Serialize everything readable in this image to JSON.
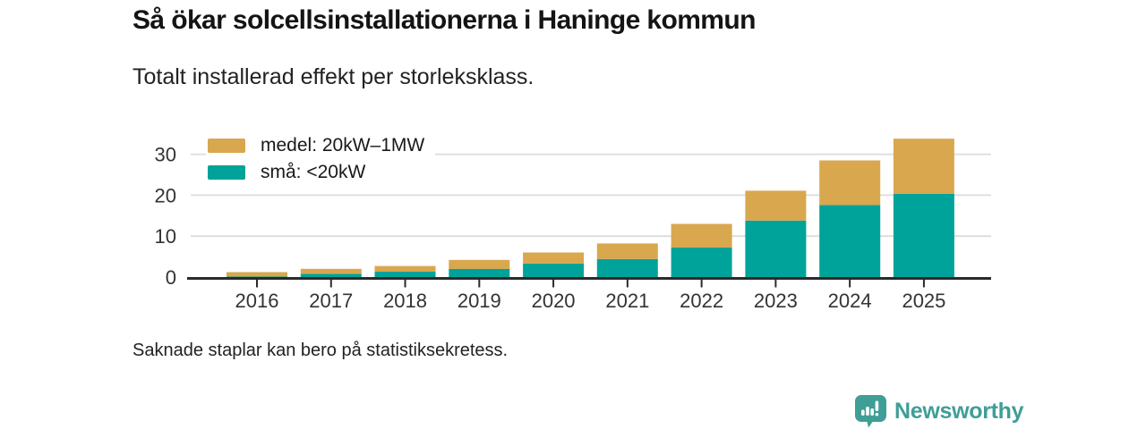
{
  "header": {
    "title": "Så ökar solcellsinstallationerna i Haninge kommun",
    "subtitle": "Totalt installerad effekt per storleksklass."
  },
  "footer": {
    "note": "Saknade staplar kan bero på statistiksekretess.",
    "brand": "Newsworthy"
  },
  "colors": {
    "medel": "#D9A74E",
    "sma": "#00A39A",
    "brand": "#3F9E96",
    "grid": "#DCDCDC",
    "axis": "#2A2A2A",
    "tick_label": "#333333"
  },
  "chart_data": {
    "type": "bar",
    "stacked": true,
    "title": "Så ökar solcellsinstallationerna i Haninge kommun",
    "subtitle": "Totalt installerad effekt per storleksklass.",
    "categories": [
      "2016",
      "2017",
      "2018",
      "2019",
      "2020",
      "2021",
      "2022",
      "2023",
      "2024",
      "2025"
    ],
    "series": [
      {
        "name": "medel: 20kW–1MW",
        "color": "#D9A74E",
        "values": [
          1.1,
          1.2,
          1.4,
          2.2,
          2.7,
          3.8,
          5.8,
          7.3,
          10.9,
          13.5
        ]
      },
      {
        "name": "små: <20kW",
        "color": "#00A39A",
        "values": [
          0.1,
          0.8,
          1.3,
          2.0,
          3.3,
          4.4,
          7.2,
          13.8,
          17.6,
          20.3
        ]
      }
    ],
    "stack_order_bottom_to_top": [
      "små: <20kW",
      "medel: 20kW–1MW"
    ],
    "xlabel": "",
    "ylabel": "",
    "yticks": [
      0,
      10,
      20,
      30
    ],
    "ylim": [
      0,
      34
    ],
    "legend_position": "top-left",
    "grid": "horizontal"
  }
}
